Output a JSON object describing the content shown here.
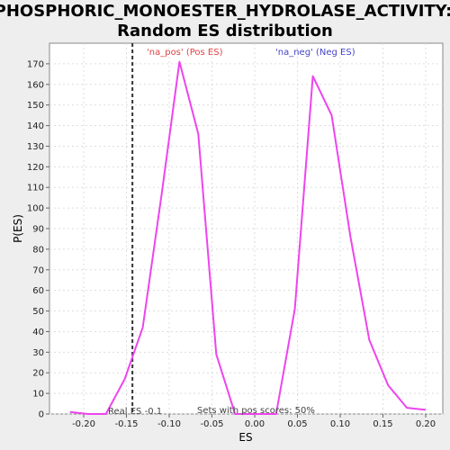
{
  "chart_data": {
    "type": "line",
    "title_line1": "PHOSPHORIC_MONOESTER_HYDROLASE_ACTIVITY:",
    "title_line2": "Random ES distribution",
    "xlabel": "ES",
    "ylabel": "P(ES)",
    "xlim": [
      -0.24,
      0.22
    ],
    "ylim": [
      0,
      180
    ],
    "x_ticks": [
      -0.2,
      -0.15,
      -0.1,
      -0.05,
      0.0,
      0.05,
      0.1,
      0.15,
      0.2
    ],
    "x_tick_labels": [
      "-0.20",
      "-0.15",
      "-0.10",
      "-0.05",
      "0.00",
      "0.05",
      "0.10",
      "0.15",
      "0.20"
    ],
    "y_ticks": [
      0,
      10,
      20,
      30,
      40,
      50,
      60,
      70,
      80,
      90,
      100,
      110,
      120,
      130,
      140,
      150,
      160,
      170
    ],
    "grid": true,
    "series": [
      {
        "color": "#ee44ee",
        "x": [
          -0.216,
          -0.195,
          -0.174,
          -0.152,
          -0.131,
          -0.109,
          -0.088,
          -0.066,
          -0.045,
          -0.023,
          -0.002,
          0.025,
          0.047,
          0.068,
          0.09,
          0.112,
          0.134,
          0.156,
          0.178,
          0.2
        ],
        "y": [
          1,
          0,
          0,
          17,
          42,
          106,
          171,
          136,
          29,
          0,
          0,
          0,
          51,
          164,
          145,
          86,
          36,
          14,
          3,
          2
        ]
      }
    ],
    "real_es": {
      "x": -0.143,
      "label": "Real ES -0.1"
    },
    "annotations": {
      "pos_label": "'na_pos' (Pos ES)",
      "pos_color": "#dd4444",
      "neg_label": "'na_neg' (Neg ES)",
      "neg_color": "#4444cc",
      "footer": "Sets with pos scores: 50%"
    }
  }
}
